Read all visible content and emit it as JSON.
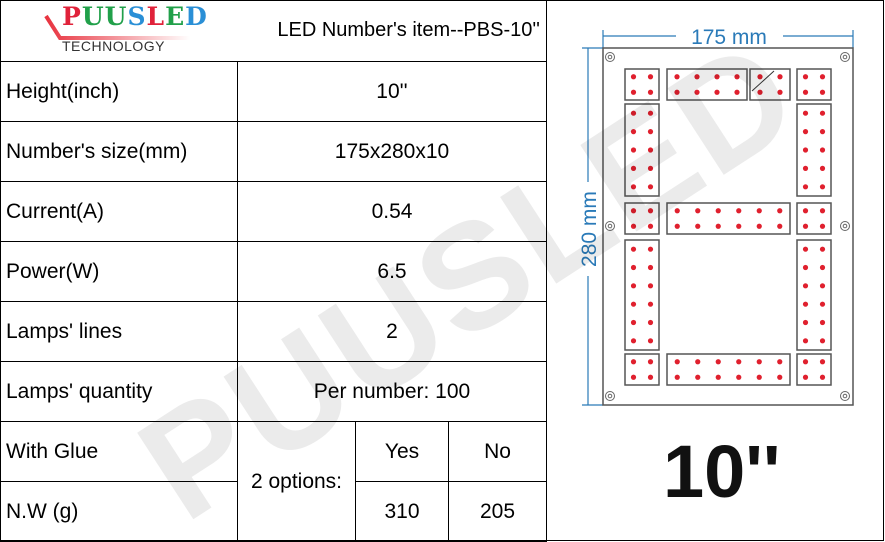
{
  "logo": {
    "brand": "PUUSLED",
    "sub": "TECHNOLOGY",
    "letter_colors": [
      "#e0223a",
      "#21a04a",
      "#21a04a",
      "#2a8fd6",
      "#e0223a",
      "#21a04a",
      "#2a8fd6"
    ]
  },
  "title": "LED Number's item--PBS-10''",
  "rows": [
    {
      "label": "Height(inch)",
      "value": "10''"
    },
    {
      "label": "Number's size(mm)",
      "value": "175x280x10"
    },
    {
      "label": "Current(A)",
      "value": "0.54"
    },
    {
      "label": "Power(W)",
      "value": "6.5"
    },
    {
      "label": "Lamps' lines",
      "value": "2"
    },
    {
      "label": "Lamps' quantity",
      "value": "Per number:  100"
    }
  ],
  "glue": {
    "label": "With Glue",
    "options": "2 options:",
    "yes": "Yes",
    "no": "No"
  },
  "weight": {
    "label": "N.W (g)",
    "yes": "310",
    "no": "205"
  },
  "diagram": {
    "width_label": "175 mm",
    "height_label": "280 mm",
    "size": "10''",
    "dot_color": "#e0202e",
    "dim_color": "#2a7ab8"
  },
  "watermark": "PUUSLED"
}
